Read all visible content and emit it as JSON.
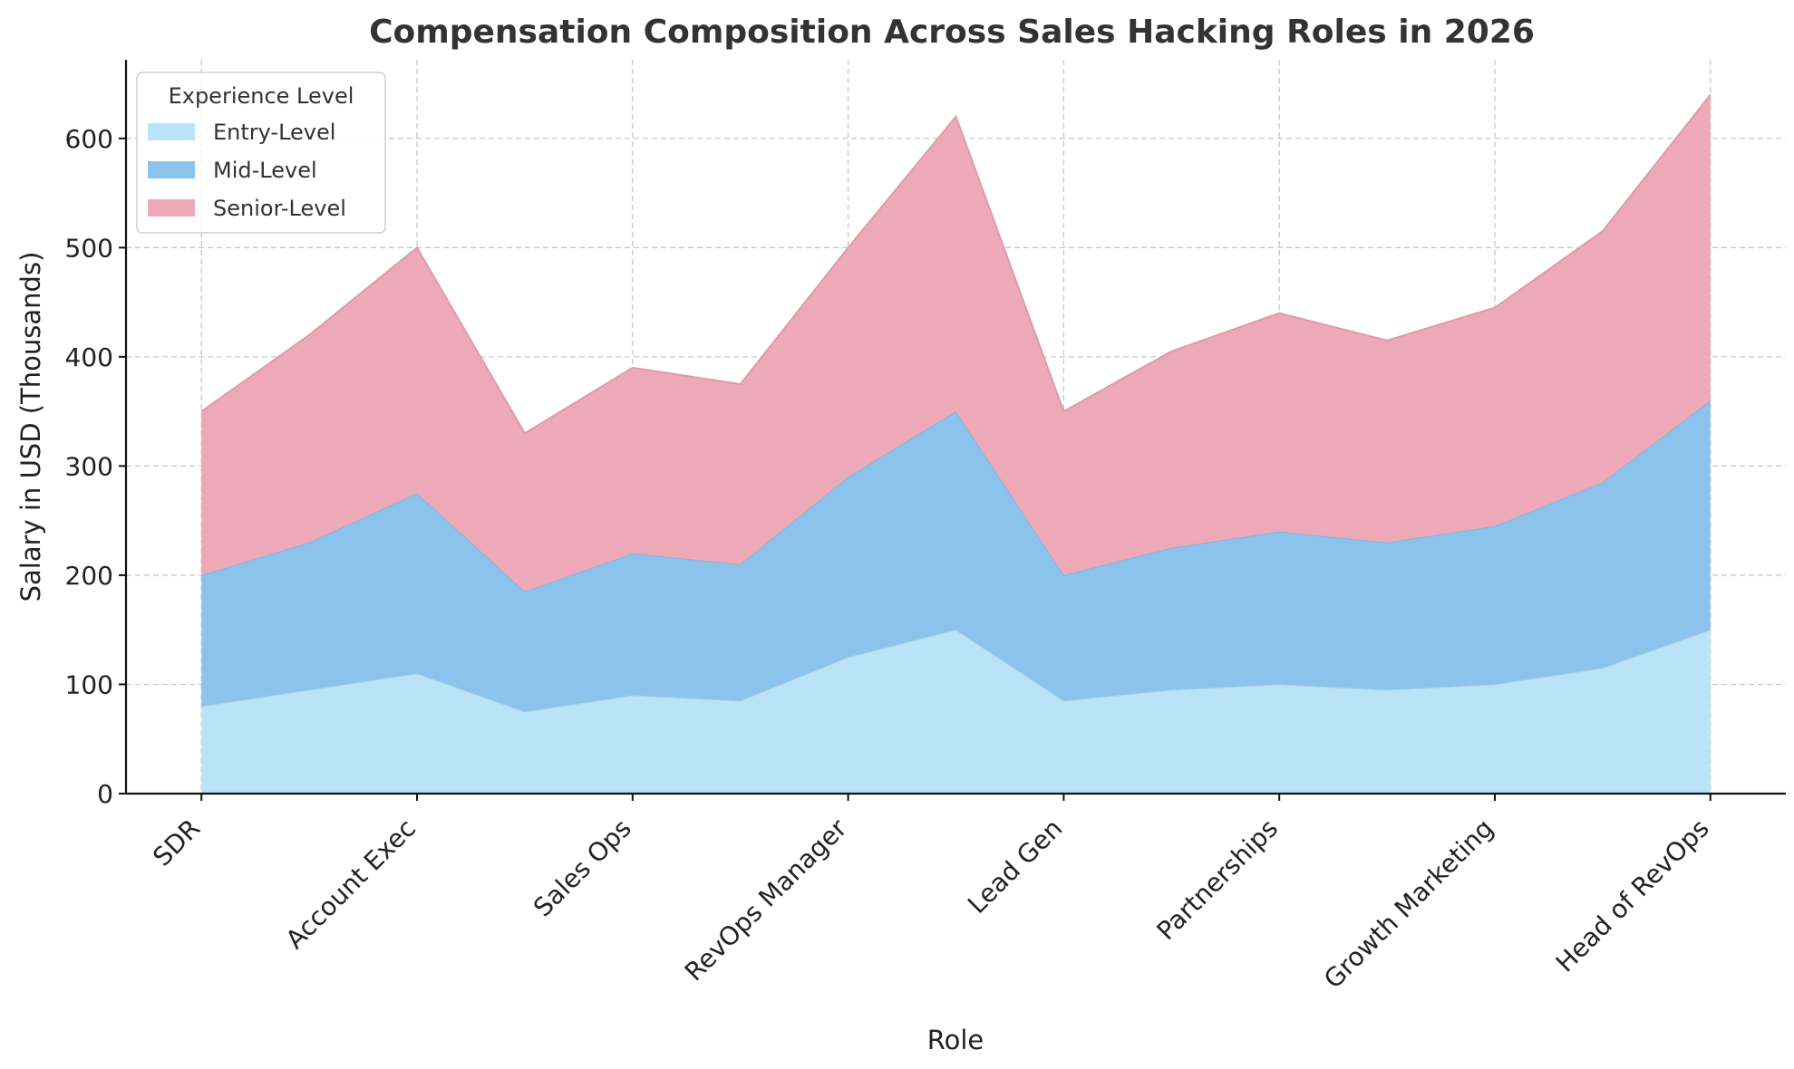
{
  "chart_data": {
    "type": "area",
    "stacked": true,
    "title": "Compensation Composition Across Sales Hacking Roles in 2026",
    "xlabel": "Role",
    "ylabel": "Salary in USD (Thousands)",
    "x_tick_labels": [
      "SDR",
      "Account Exec",
      "Sales Ops",
      "RevOps Manager",
      "Lead Gen",
      "Partnerships",
      "Growth Marketing",
      "Head of RevOps"
    ],
    "x_positions": [
      0,
      1,
      2,
      3,
      4,
      5,
      6,
      7,
      8,
      9,
      10,
      11,
      12,
      13,
      14
    ],
    "x_tick_positions": [
      0,
      2,
      4,
      6,
      8,
      10,
      12,
      14
    ],
    "y_ticks": [
      0,
      100,
      200,
      300,
      400,
      500,
      600
    ],
    "ylim": [
      0,
      672
    ],
    "xlim": [
      -0.7,
      14.7
    ],
    "grid": true,
    "legend_title": "Experience Level",
    "legend_position": "upper-left",
    "series": [
      {
        "name": "Entry-Level",
        "color": "#bbe3f7",
        "values": [
          80,
          95,
          110,
          75,
          90,
          85,
          125,
          150,
          85,
          95,
          100,
          95,
          100,
          115,
          150
        ]
      },
      {
        "name": "Mid-Level",
        "color": "#8cc3ed",
        "values": [
          120,
          135,
          165,
          110,
          130,
          125,
          165,
          200,
          115,
          130,
          140,
          135,
          145,
          170,
          210
        ]
      },
      {
        "name": "Senior-Level",
        "color": "#eda9b7",
        "values": [
          150,
          190,
          225,
          145,
          170,
          165,
          210,
          270,
          150,
          180,
          200,
          185,
          200,
          230,
          280
        ]
      }
    ]
  }
}
